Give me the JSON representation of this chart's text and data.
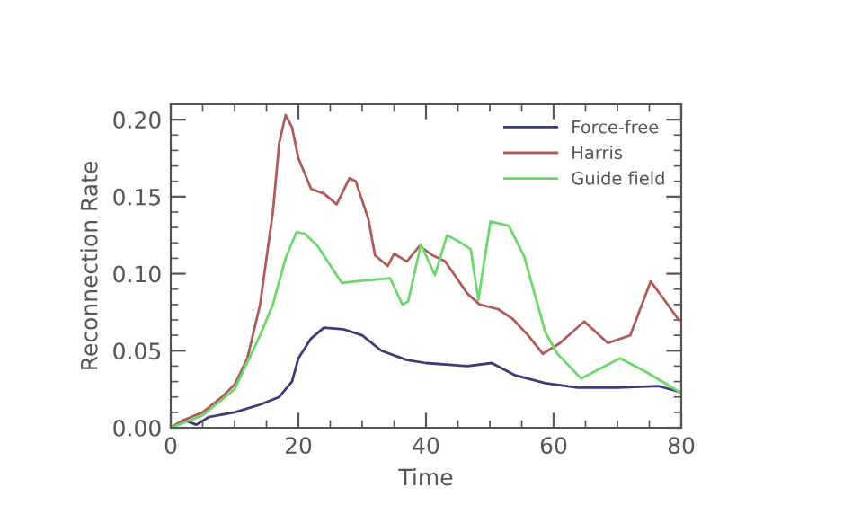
{
  "chart_data": {
    "type": "line",
    "xlabel": "Time",
    "ylabel": "Reconnection Rate",
    "xlim": [
      0,
      80
    ],
    "xticks": [
      0,
      20,
      40,
      60,
      80
    ],
    "ylim": [
      0,
      0.21
    ],
    "yticks": [
      {
        "value": 0,
        "label": "0.00"
      },
      {
        "value": 0.05,
        "label": "0.05"
      },
      {
        "value": 0.1,
        "label": "0.10"
      },
      {
        "value": 0.15,
        "label": "0.15"
      },
      {
        "value": 0.2,
        "label": "0.20"
      }
    ],
    "grid": false,
    "legend": "top right",
    "marker": "none",
    "line_style": "solid",
    "series": [
      {
        "name": "Force-free",
        "color": "#3c3c7a",
        "x": [
          0,
          2,
          4,
          6,
          10,
          14,
          17,
          19,
          20,
          22,
          24,
          27,
          30,
          33,
          37,
          40,
          46.5,
          50.3,
          54,
          58.7,
          63.8,
          70,
          76.5,
          80
        ],
        "values": [
          0,
          0.005,
          0.002,
          0.007,
          0.01,
          0.015,
          0.02,
          0.03,
          0.045,
          0.058,
          0.065,
          0.064,
          0.06,
          0.05,
          0.044,
          0.042,
          0.04,
          0.042,
          0.034,
          0.029,
          0.026,
          0.026,
          0.027,
          0.023
        ]
      },
      {
        "name": "Harris",
        "color": "#b05a5a",
        "x": [
          0,
          2,
          5,
          8,
          10,
          12,
          14,
          16,
          17,
          18,
          19,
          20,
          22,
          24,
          26,
          28,
          29,
          31,
          32,
          34,
          35,
          37,
          39,
          41,
          43,
          46.5,
          48.4,
          51.3,
          53.5,
          56,
          58.3,
          61,
          64.8,
          68.5,
          72,
          75.2,
          77,
          79.6,
          80
        ],
        "values": [
          0,
          0.005,
          0.01,
          0.02,
          0.028,
          0.045,
          0.08,
          0.14,
          0.185,
          0.203,
          0.195,
          0.175,
          0.155,
          0.152,
          0.145,
          0.162,
          0.16,
          0.135,
          0.112,
          0.105,
          0.113,
          0.108,
          0.118,
          0.112,
          0.108,
          0.087,
          0.08,
          0.077,
          0.071,
          0.06,
          0.048,
          0.055,
          0.069,
          0.055,
          0.06,
          0.095,
          0.085,
          0.07,
          0.07
        ]
      },
      {
        "name": "Guide field",
        "color": "#6cd86c",
        "x": [
          0,
          5,
          10,
          14,
          16,
          18,
          19.7,
          21,
          23,
          26.8,
          29,
          34.4,
          36.3,
          37.2,
          39.2,
          41.4,
          43.3,
          45.1,
          47,
          48.2,
          50.1,
          53,
          55.4,
          58.7,
          60.6,
          64.3,
          70.4,
          74.6,
          79.8
        ],
        "values": [
          0,
          0.008,
          0.025,
          0.06,
          0.08,
          0.11,
          0.127,
          0.126,
          0.118,
          0.094,
          0.095,
          0.097,
          0.08,
          0.082,
          0.119,
          0.099,
          0.125,
          0.121,
          0.116,
          0.083,
          0.134,
          0.131,
          0.111,
          0.062,
          0.048,
          0.032,
          0.045,
          0.036,
          0.023
        ]
      }
    ]
  }
}
